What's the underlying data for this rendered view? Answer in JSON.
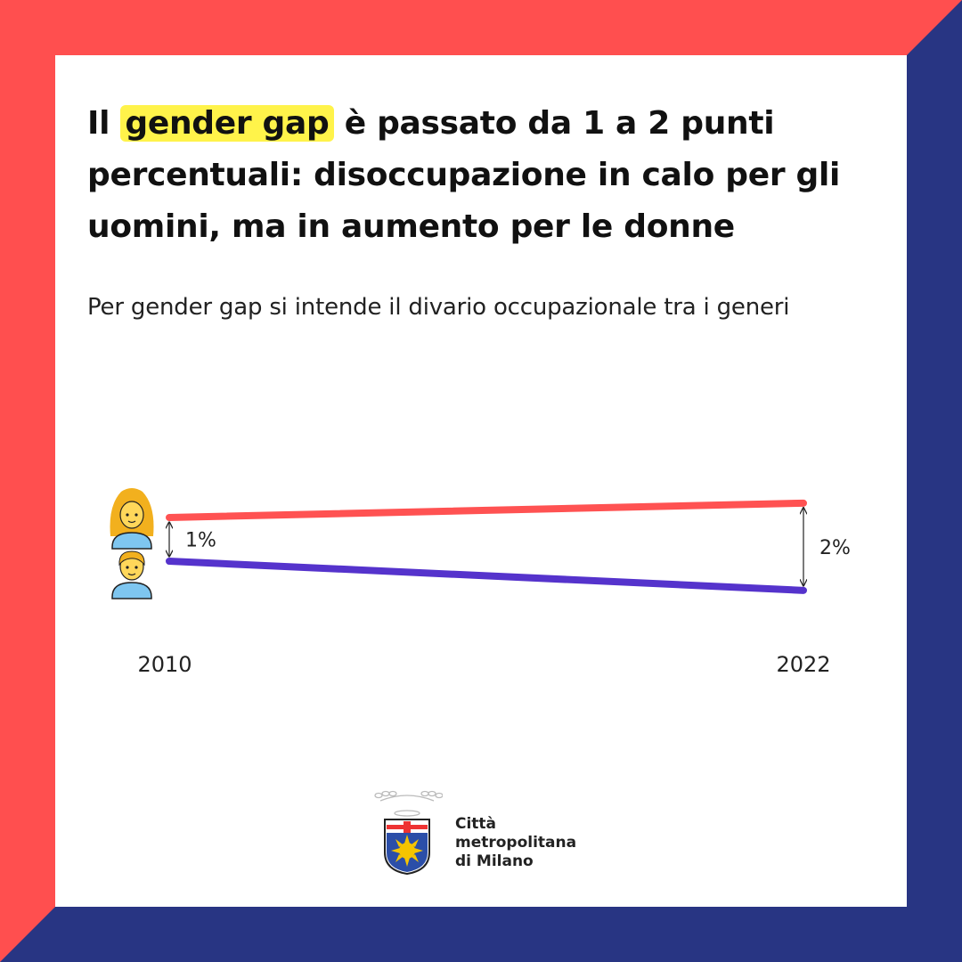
{
  "title": {
    "before": "Il ",
    "highlight": "gender gap",
    "after": " è passato da 1 a 2 punti percentuali: disoccupazione in calo per gli uomini,  ma in aumento per le donne"
  },
  "subtitle": "Per gender gap si intende il divario occupazionale tra i generi",
  "colors": {
    "frame_red": "#ff4f4f",
    "frame_blue": "#283583",
    "women_line": "#ff5252",
    "men_line": "#5533cc",
    "highlight": "#fff34a"
  },
  "chart_data": {
    "type": "line",
    "x": [
      "2010",
      "2022"
    ],
    "series": [
      {
        "icon": "woman-icon",
        "values": [
          1.0,
          1.33
        ],
        "color": "#ff5252"
      },
      {
        "icon": "man-icon",
        "values": [
          0.0,
          -0.67
        ],
        "color": "#5533cc"
      }
    ],
    "gap_labels": [
      "1%",
      "2%"
    ],
    "grid": false
  },
  "logo": {
    "icon": "milano-coat-of-arms-icon",
    "lines": [
      "Città",
      "metropolitana",
      "di Milano"
    ]
  }
}
